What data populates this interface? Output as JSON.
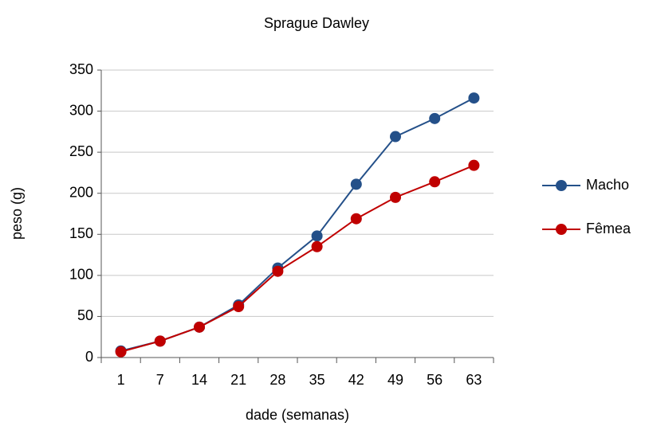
{
  "chart_data": {
    "type": "line",
    "title": "Sprague Dawley",
    "x_label": "dade (semanas)",
    "y_label": "peso (g)",
    "categories": [
      "1",
      "7",
      "14",
      "21",
      "28",
      "35",
      "42",
      "49",
      "56",
      "63"
    ],
    "series": [
      {
        "name": "Macho",
        "color": "#245089",
        "values": [
          8,
          20,
          37,
          64,
          109,
          148,
          211,
          269,
          291,
          316
        ]
      },
      {
        "name": "Fêmea",
        "color": "#c00000",
        "values": [
          7,
          20,
          37,
          62,
          105,
          135,
          169,
          195,
          214,
          234
        ]
      }
    ],
    "ylim": [
      0,
      350
    ],
    "yticks": [
      0,
      50,
      100,
      150,
      200,
      250,
      300,
      350
    ],
    "grid": true,
    "legend": "right"
  }
}
